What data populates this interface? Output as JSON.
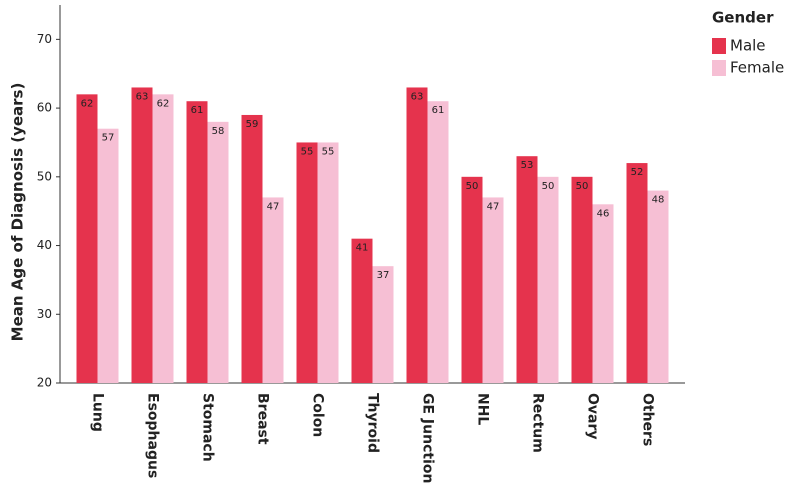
{
  "chart_data": {
    "type": "bar",
    "y_label": "Mean Age of Diagnosis (years)",
    "legend_title": "Gender",
    "categories": [
      "Lung",
      "Esophagus",
      "Stomach",
      "Breast",
      "Colon",
      "Thyroid",
      "GE Junction",
      "NHL",
      "Rectum",
      "Ovary",
      "Others"
    ],
    "series": [
      {
        "name": "Male",
        "color": "#e5334d",
        "values": [
          62,
          63,
          61,
          59,
          55,
          41,
          63,
          50,
          53,
          50,
          52
        ]
      },
      {
        "name": "Female",
        "color": "#f6bfd4",
        "values": [
          57,
          62,
          58,
          47,
          55,
          37,
          61,
          47,
          50,
          46,
          48
        ]
      }
    ],
    "ylim": [
      20,
      75
    ],
    "yticks": [
      20,
      30,
      40,
      50,
      60,
      70
    ],
    "legend": "top-right"
  }
}
